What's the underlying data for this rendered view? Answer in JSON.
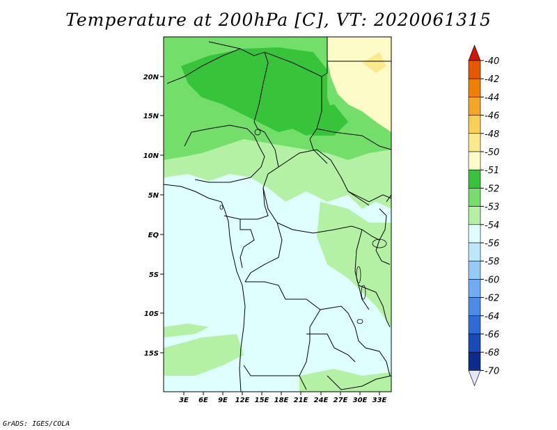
{
  "title": "Temperature at 200hPa [C], VT: 2020061315",
  "credit": "GrADS: IGES/COLA",
  "map": {
    "lat_ticks": [
      "20N",
      "15N",
      "10N",
      "5N",
      "EQ",
      "5S",
      "10S",
      "15S"
    ],
    "lon_ticks": [
      "3E",
      "6E",
      "9E",
      "12E",
      "15E",
      "18E",
      "21E",
      "24E",
      "27E",
      "30E",
      "33E"
    ]
  },
  "colorbar": {
    "levels": [
      {
        "label": "-40",
        "color": "#d62c00"
      },
      {
        "label": "-42",
        "color": "#e85800"
      },
      {
        "label": "-44",
        "color": "#f08000"
      },
      {
        "label": "-46",
        "color": "#f5a623"
      },
      {
        "label": "-48",
        "color": "#f9cf55"
      },
      {
        "label": "-50",
        "color": "#fbe98e"
      },
      {
        "label": "-51",
        "color": "#fdfbc8"
      },
      {
        "label": "-52",
        "color": "#38c43a"
      },
      {
        "label": "-53",
        "color": "#73df6a"
      },
      {
        "label": "-54",
        "color": "#b4f1a4"
      },
      {
        "label": "-56",
        "color": "#dffffe"
      },
      {
        "label": "-58",
        "color": "#bde7fd"
      },
      {
        "label": "-60",
        "color": "#96cbf8"
      },
      {
        "label": "-62",
        "color": "#6fadf2"
      },
      {
        "label": "-64",
        "color": "#4a8ce6"
      },
      {
        "label": "-66",
        "color": "#2d6cd6"
      },
      {
        "label": "-68",
        "color": "#174bb8"
      },
      {
        "label": "-70",
        "color": "#0b2c8c"
      }
    ],
    "top_triangle_color": "#cc1800",
    "bottom_triangle_color": "#e6e6fa"
  }
}
